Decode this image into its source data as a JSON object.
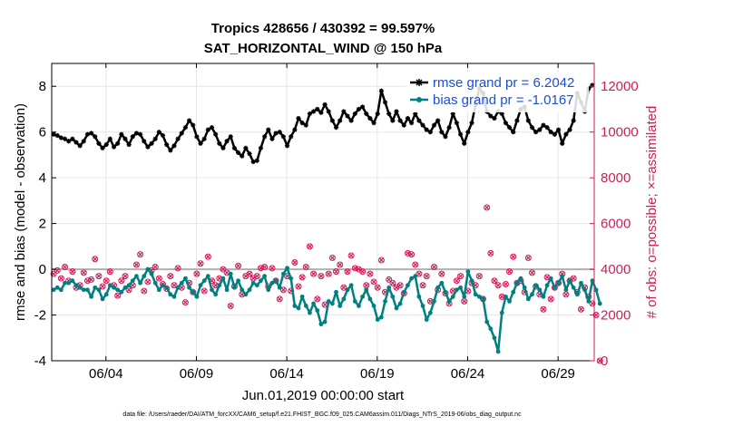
{
  "chart_data": {
    "type": "line",
    "title": "Tropics 428656 / 430392 = 99.597%",
    "subtitle": "SAT_HORIZONTAL_WIND @ 150 hPa",
    "ylabel": "rmse and bias (model - observation)",
    "ylabel_right": "# of obs: o=possible; ×=assimilated",
    "xlabel": "Jun.01,2019 00:00:00 start",
    "footnote": "data file: /Users/raeder/DAI/ATM_forcXX/CAM6_setup/f.e21.FHIST_BGC.f09_025.CAM6assim.011/Diags_NTrS_2019-06/obs_diag_output.nc",
    "x_range": [
      0.5,
      30.5
    ],
    "ylim": [
      -4,
      9
    ],
    "ylim_right": [
      0,
      13000
    ],
    "xticks": [
      {
        "value": 3.5,
        "label": "06/04"
      },
      {
        "value": 8.5,
        "label": "06/09"
      },
      {
        "value": 13.5,
        "label": "06/14"
      },
      {
        "value": 18.5,
        "label": "06/19"
      },
      {
        "value": 23.5,
        "label": "06/24"
      },
      {
        "value": 28.5,
        "label": "06/29"
      }
    ],
    "yticks": [
      -4,
      -2,
      0,
      2,
      4,
      6,
      8
    ],
    "yticks_labels": [
      "-4",
      "-2",
      "0",
      "2",
      "4",
      "6",
      "8"
    ],
    "yticks_right": [
      0,
      2000,
      4000,
      6000,
      8000,
      10000,
      12000
    ],
    "yticks_right_labels": [
      "0",
      "2000",
      "4000",
      "6000",
      "8000",
      "10000",
      "12000"
    ],
    "grid": true,
    "legend_position": "top-right",
    "colors": {
      "rmse": "#000000",
      "bias": "#008080",
      "obs": "#d01c5a",
      "zero_line": "#b0b0b0"
    },
    "series": [
      {
        "name": "rmse grand pr = 6.2042",
        "legend_label": "rmse grand pr = 6.2042",
        "color": "#000000",
        "marker": "star",
        "values": [
          5.9,
          5.85,
          5.75,
          5.7,
          5.6,
          5.7,
          5.55,
          5.4,
          5.6,
          5.9,
          5.95,
          5.8,
          5.5,
          5.3,
          5.45,
          5.7,
          5.35,
          5.5,
          5.9,
          5.7,
          5.45,
          5.8,
          5.95,
          5.9,
          5.6,
          5.35,
          5.5,
          5.7,
          6.0,
          5.85,
          5.45,
          5.2,
          5.4,
          5.7,
          5.95,
          6.2,
          6.5,
          6.3,
          5.8,
          5.5,
          5.7,
          6.1,
          6.2,
          5.9,
          5.5,
          5.3,
          5.6,
          5.8,
          5.3,
          5.1,
          4.95,
          5.3,
          5.05,
          4.7,
          4.75,
          5.3,
          5.8,
          6.1,
          5.7,
          5.95,
          6.0,
          5.8,
          5.4,
          5.8,
          6.1,
          6.6,
          6.4,
          6.3,
          6.8,
          6.9,
          7.0,
          6.85,
          7.2,
          6.9,
          6.5,
          6.2,
          6.5,
          6.9,
          6.7,
          6.5,
          6.8,
          7.0,
          7.1,
          6.8,
          6.6,
          6.4,
          6.8,
          7.8,
          7.3,
          6.8,
          6.5,
          6.9,
          6.5,
          6.3,
          6.6,
          6.4,
          6.8,
          6.5,
          6.3,
          6.1,
          6.0,
          6.3,
          6.5,
          6.0,
          5.8,
          6.2,
          6.8,
          6.4,
          5.9,
          5.5,
          6.0,
          6.4,
          7.2,
          7.9,
          7.7,
          6.9,
          6.7,
          6.6,
          6.9,
          6.8,
          6.4,
          6.2,
          6.0,
          6.5,
          7.0,
          7.1,
          6.5,
          6.2,
          6.0,
          6.1,
          6.3,
          6.2,
          6.0,
          5.9,
          6.1,
          5.5,
          5.9,
          6.1,
          6.5,
          7.7,
          7.3,
          6.9,
          7.9,
          8.05
        ]
      },
      {
        "name": "bias grand pr = -1.0167",
        "legend_label": "bias grand pr = -1.0167",
        "color": "#008080",
        "marker": "circle",
        "values": [
          -0.9,
          -0.8,
          -0.9,
          -0.6,
          -0.6,
          -0.5,
          -0.7,
          -0.8,
          -0.9,
          -0.9,
          -1.2,
          -0.8,
          -0.9,
          -1.3,
          -1.1,
          -0.7,
          -0.8,
          -0.9,
          -1.0,
          -0.8,
          -0.7,
          -0.5,
          -0.3,
          -0.6,
          -0.3,
          0.0,
          -0.2,
          -0.6,
          -0.9,
          -0.7,
          -0.8,
          -1.1,
          -1.2,
          -0.8,
          -0.6,
          -0.4,
          -0.8,
          -1.0,
          -1.2,
          -0.7,
          -0.5,
          -0.3,
          -0.9,
          -1.1,
          -0.7,
          -0.4,
          -0.9,
          -0.2,
          -0.8,
          -0.5,
          -0.9,
          -1.1,
          -0.9,
          -0.6,
          -0.7,
          -0.5,
          -0.3,
          -0.9,
          -0.6,
          -0.5,
          -0.8,
          -0.2,
          0.05,
          -0.4,
          -1.6,
          -1.7,
          -1.2,
          -1.6,
          -1.9,
          -1.5,
          -1.8,
          -2.4,
          -2.3,
          -1.4,
          -1.5,
          -1.0,
          -1.6,
          -1.3,
          -0.9,
          -0.7,
          -1.4,
          -1.6,
          -1.2,
          -0.9,
          -1.3,
          -1.6,
          -2.2,
          -2.1,
          -1.4,
          -0.8,
          -1.2,
          -1.7,
          -1.5,
          -1.0,
          -0.7,
          -0.4,
          -0.3,
          -1.2,
          -1.6,
          -2.2,
          -1.9,
          -1.4,
          -0.8,
          -0.6,
          -1.0,
          -1.4,
          -1.2,
          -0.9,
          -0.8,
          -1.2,
          -0.1,
          -0.5,
          -1.1,
          -1.2,
          -1.3,
          -2.3,
          -2.6,
          -3.0,
          -3.6,
          -1.9,
          -1.2,
          -1.4,
          -1.0,
          -0.6,
          -0.4,
          -0.8,
          -1.3,
          -1.1,
          -0.7,
          -0.9,
          -1.2,
          -0.7,
          -0.4,
          -0.8,
          -0.6,
          -0.3,
          -0.9,
          -0.5,
          -0.8,
          -1.1,
          -0.6,
          -0.9,
          -1.4,
          -0.5,
          -0.9,
          -1.5
        ]
      },
      {
        "name": "observations possible",
        "color": "#d01c5a",
        "marker": "circle-open",
        "values": [
          3800,
          3950,
          3600,
          4100,
          3500,
          3900,
          3200,
          3300,
          3850,
          3500,
          3550,
          4450,
          3700,
          3250,
          3500,
          3900,
          3300,
          2850,
          3500,
          3700,
          3100,
          3300,
          4200,
          4650,
          3050,
          3450,
          3950,
          4100,
          3600,
          3350,
          3150,
          3700,
          3300,
          4050,
          3200,
          2550,
          3400,
          3000,
          3800,
          4250,
          3050,
          4550,
          3500,
          3300,
          3600,
          4000,
          3850,
          2400,
          3250,
          4150,
          2900,
          3700,
          3800,
          3600,
          3700,
          4050,
          4100,
          3250,
          4050,
          3500,
          2700,
          3100,
          3700,
          3050,
          4300,
          3250,
          3650,
          4100,
          5000,
          3800,
          2700,
          3700,
          2450,
          3800,
          4500,
          3900,
          4200,
          3200,
          3900,
          4600,
          4050,
          4000,
          3900,
          3300,
          3800,
          3450,
          3200,
          4400,
          3000,
          3550,
          3400,
          3200,
          3300,
          2950,
          4700,
          4650,
          4200,
          3800,
          3300,
          3700,
          2600,
          4100,
          3100,
          3800,
          2950,
          2500,
          3050,
          3500,
          3700,
          2600,
          3050,
          3400,
          3300,
          3700,
          2700,
          6700,
          4700,
          3500,
          3300,
          2800,
          3350,
          3900,
          4550,
          3400,
          3500,
          3000,
          4500,
          3850,
          3250,
          2900,
          2250,
          3650,
          2700,
          3200,
          3400,
          3800,
          2900,
          3500,
          3600,
          3000,
          2250,
          3200,
          2800,
          2500,
          2000,
          0
        ]
      },
      {
        "name": "observations assimilated",
        "color": "#d01c5a",
        "marker": "cross",
        "values": [
          3800,
          3950,
          3600,
          4100,
          3500,
          3900,
          3200,
          3300,
          3850,
          3500,
          3550,
          4450,
          3700,
          3250,
          3500,
          3900,
          3300,
          2850,
          3500,
          3700,
          3100,
          3300,
          4200,
          4650,
          3050,
          3450,
          3950,
          4100,
          3600,
          3350,
          3150,
          3700,
          3300,
          4050,
          3200,
          2550,
          3400,
          3000,
          3800,
          4250,
          3050,
          4550,
          3500,
          3300,
          3600,
          4000,
          3850,
          2400,
          3250,
          4150,
          2900,
          3700,
          3800,
          3600,
          3700,
          4050,
          4100,
          3250,
          4050,
          3500,
          2700,
          3100,
          3700,
          3050,
          4300,
          3250,
          3650,
          4100,
          5000,
          3800,
          2700,
          3700,
          2450,
          3800,
          4500,
          3900,
          4200,
          3200,
          3900,
          4600,
          4050,
          4000,
          3900,
          3300,
          3800,
          3450,
          3200,
          4400,
          3000,
          3550,
          3400,
          3200,
          3300,
          2950,
          4700,
          4650,
          4200,
          3800,
          3300,
          3700,
          2600,
          4100,
          3100,
          3800,
          2950,
          2500,
          3050,
          3500,
          3700,
          2600,
          3050,
          3400,
          3300,
          3700,
          2700,
          6700,
          4700,
          3500,
          3300,
          2800,
          3350,
          3900,
          4550,
          3400,
          3500,
          3000,
          4500,
          3850,
          3250,
          2900,
          2250,
          3650,
          2700,
          3200,
          3400,
          3800,
          2900,
          3500,
          3600,
          3000,
          2250,
          3200,
          2800,
          2500,
          2000,
          0
        ]
      }
    ]
  }
}
